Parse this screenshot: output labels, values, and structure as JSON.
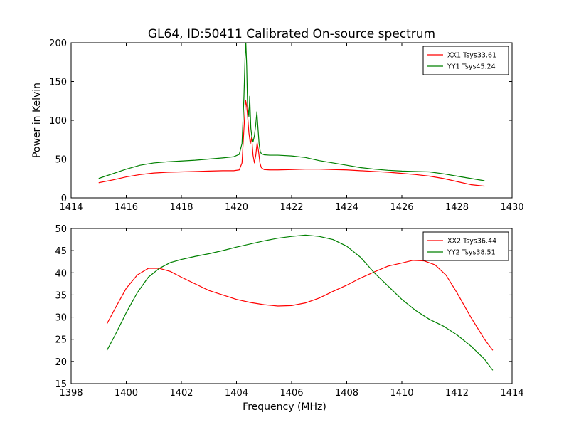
{
  "figure": {
    "title": "GL64, ID:50411 Calibrated On-source spectrum",
    "background": "#ffffff"
  },
  "colors": {
    "red": "#ff0000",
    "green": "#008000"
  },
  "chart_data": [
    {
      "type": "line",
      "title": "GL64, ID:50411 Calibrated On-source spectrum",
      "xlabel": "",
      "ylabel": "Power in Kelvin",
      "xlim": [
        1414,
        1430
      ],
      "ylim": [
        0,
        200
      ],
      "xticks": [
        1414,
        1416,
        1418,
        1420,
        1422,
        1424,
        1426,
        1428,
        1430
      ],
      "yticks": [
        0,
        50,
        100,
        150,
        200
      ],
      "legend": "top-right",
      "grid": false,
      "series": [
        {
          "name": "XX1 Tsys33.61",
          "color": "#ff0000",
          "x": [
            1415.0,
            1415.5,
            1416.0,
            1416.5,
            1417.0,
            1417.5,
            1418.0,
            1418.5,
            1419.0,
            1419.5,
            1419.9,
            1420.1,
            1420.2,
            1420.28,
            1420.33,
            1420.37,
            1420.4,
            1420.45,
            1420.5,
            1420.55,
            1420.6,
            1420.65,
            1420.7,
            1420.75,
            1420.8,
            1420.85,
            1420.9,
            1421.0,
            1421.2,
            1421.5,
            1422.0,
            1422.5,
            1423.0,
            1423.5,
            1424.0,
            1424.5,
            1425.0,
            1425.5,
            1426.0,
            1426.5,
            1427.0,
            1427.5,
            1428.0,
            1428.5,
            1429.0
          ],
          "y": [
            19.5,
            23,
            27,
            30,
            32,
            33,
            33.5,
            34,
            34.5,
            35,
            35,
            36,
            45,
            95,
            126,
            118,
            107,
            84,
            70,
            78,
            55,
            45,
            55,
            71,
            60,
            45,
            39,
            36.5,
            36,
            36,
            36.5,
            37,
            37,
            36.5,
            36,
            35,
            34,
            33,
            31.5,
            30,
            28,
            25,
            21,
            17,
            15
          ]
        },
        {
          "name": "YY1 Tsys45.24",
          "color": "#008000",
          "x": [
            1415.0,
            1415.5,
            1416.0,
            1416.5,
            1417.0,
            1417.5,
            1418.0,
            1418.5,
            1419.0,
            1419.5,
            1419.9,
            1420.1,
            1420.2,
            1420.27,
            1420.31,
            1420.34,
            1420.37,
            1420.4,
            1420.45,
            1420.48,
            1420.52,
            1420.56,
            1420.6,
            1420.65,
            1420.7,
            1420.74,
            1420.78,
            1420.82,
            1420.86,
            1420.9,
            1421.0,
            1421.2,
            1421.5,
            1422.0,
            1422.5,
            1423.0,
            1423.5,
            1424.0,
            1424.5,
            1425.0,
            1425.5,
            1426.0,
            1426.5,
            1427.0,
            1427.5,
            1428.0,
            1428.5,
            1429.0
          ],
          "y": [
            25,
            31,
            37,
            42,
            45,
            46.5,
            47.5,
            48.5,
            50,
            51.5,
            53,
            56,
            70,
            130,
            180,
            200,
            170,
            120,
            105,
            131,
            90,
            78,
            72,
            80,
            95,
            111,
            90,
            70,
            60,
            57,
            55.5,
            55,
            55,
            54,
            52,
            48,
            45,
            42,
            39,
            37,
            35.5,
            34.5,
            34,
            33.5,
            31,
            28,
            25,
            22
          ]
        }
      ]
    },
    {
      "type": "line",
      "title": "",
      "xlabel": "Frequency (MHz)",
      "ylabel": "",
      "xlim": [
        1398,
        1414
      ],
      "ylim": [
        15,
        50
      ],
      "xticks": [
        1398,
        1400,
        1402,
        1404,
        1406,
        1408,
        1410,
        1412,
        1414
      ],
      "yticks": [
        15,
        20,
        25,
        30,
        35,
        40,
        45,
        50
      ],
      "legend": "top-right",
      "grid": false,
      "series": [
        {
          "name": "XX2 Tsys36.44",
          "color": "#ff0000",
          "x": [
            1399.3,
            1399.6,
            1400.0,
            1400.4,
            1400.8,
            1401.2,
            1401.6,
            1402.0,
            1402.5,
            1403.0,
            1403.5,
            1404.0,
            1404.5,
            1405.0,
            1405.5,
            1406.0,
            1406.5,
            1407.0,
            1407.5,
            1408.0,
            1408.5,
            1409.0,
            1409.5,
            1410.0,
            1410.4,
            1410.8,
            1411.2,
            1411.6,
            1412.0,
            1412.5,
            1413.0,
            1413.3
          ],
          "y": [
            28.5,
            32,
            36.5,
            39.5,
            41,
            41,
            40.3,
            39,
            37.5,
            36,
            35,
            34,
            33.3,
            32.8,
            32.5,
            32.6,
            33.2,
            34.3,
            35.8,
            37.2,
            38.8,
            40.2,
            41.5,
            42.2,
            42.8,
            42.7,
            41.8,
            39.5,
            35.5,
            30,
            25,
            22.5
          ]
        },
        {
          "name": "YY2 Tsys38.51",
          "color": "#008000",
          "x": [
            1399.3,
            1399.6,
            1400.0,
            1400.4,
            1400.8,
            1401.2,
            1401.6,
            1402.0,
            1402.5,
            1403.0,
            1403.5,
            1404.0,
            1404.5,
            1405.0,
            1405.5,
            1406.0,
            1406.5,
            1407.0,
            1407.5,
            1408.0,
            1408.5,
            1409.0,
            1409.5,
            1410.0,
            1410.5,
            1411.0,
            1411.5,
            1412.0,
            1412.5,
            1413.0,
            1413.3
          ],
          "y": [
            22.5,
            26,
            31,
            35.5,
            39,
            41,
            42.3,
            43,
            43.7,
            44.3,
            45,
            45.8,
            46.5,
            47.2,
            47.8,
            48.2,
            48.5,
            48.2,
            47.5,
            46,
            43.5,
            40,
            37,
            34,
            31.5,
            29.5,
            28,
            26,
            23.5,
            20.5,
            18
          ]
        }
      ]
    }
  ]
}
